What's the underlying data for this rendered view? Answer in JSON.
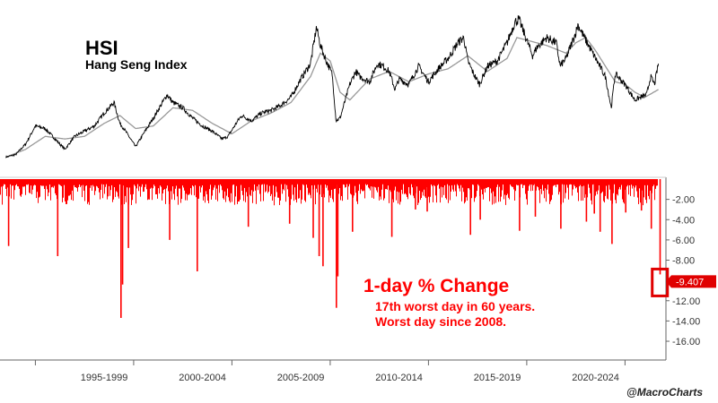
{
  "header": {
    "ticker": "HSI",
    "name": "Hang Seng Index"
  },
  "annotation": {
    "headline": "1-day % Change",
    "line1": "17th worst day in 60 years.",
    "line2": "Worst day since 2008."
  },
  "credit": "@MacroCharts",
  "colors": {
    "price": "#000000",
    "moving_average": "#999999",
    "bars": "#ff0000",
    "annotation": "#ff0000",
    "badge": "#e00000"
  },
  "chart_data": [
    {
      "type": "line",
      "panel": "top",
      "series": [
        {
          "name": "",
          "role": "price",
          "x": [
            1992.0,
            1992.5,
            1993.0,
            1993.5,
            1994.0,
            1994.5,
            1995.0,
            1995.5,
            1996.0,
            1996.5,
            1997.0,
            1997.5,
            1997.8,
            1998.0,
            1998.6,
            1999.0,
            1999.5,
            2000.2,
            2000.5,
            2001.0,
            2001.5,
            2002.0,
            2002.5,
            2003.0,
            2003.3,
            2003.8,
            2004.0,
            2004.5,
            2005.0,
            2005.5,
            2006.0,
            2006.5,
            2007.0,
            2007.5,
            2007.8,
            2008.0,
            2008.3,
            2008.6,
            2008.8,
            2009.0,
            2009.5,
            2009.8,
            2010.0,
            2010.5,
            2010.9,
            2011.2,
            2011.5,
            2011.8,
            2012.0,
            2012.5,
            2013.0,
            2013.5,
            2014.0,
            2014.5,
            2015.0,
            2015.3,
            2015.5,
            2015.8,
            2016.1,
            2016.5,
            2017.0,
            2017.5,
            2017.9,
            2018.1,
            2018.5,
            2018.8,
            2019.0,
            2019.5,
            2020.0,
            2020.2,
            2020.5,
            2021.0,
            2021.1,
            2021.5,
            2022.0,
            2022.5,
            2022.8,
            2023.0,
            2023.5,
            2024.0,
            2024.3,
            2024.6,
            2024.8,
            2025.0,
            2025.2
          ],
          "y": [
            5500,
            6000,
            8000,
            11500,
            11000,
            9000,
            7000,
            9500,
            10500,
            11500,
            14000,
            16000,
            12000,
            11000,
            7500,
            10000,
            13000,
            17500,
            16000,
            15000,
            13000,
            11500,
            10500,
            9000,
            9500,
            12500,
            13500,
            12500,
            14000,
            14500,
            15500,
            17000,
            20500,
            23500,
            30500,
            27000,
            24000,
            21500,
            12500,
            13000,
            19500,
            22000,
            21000,
            20000,
            23500,
            23000,
            22000,
            18500,
            20500,
            19500,
            23000,
            20000,
            22500,
            24500,
            27500,
            28500,
            24000,
            21500,
            19500,
            23000,
            24000,
            27500,
            31500,
            32000,
            28000,
            25000,
            26500,
            28500,
            27500,
            23000,
            24500,
            29500,
            31000,
            28000,
            24500,
            21000,
            15000,
            21500,
            19500,
            16500,
            17000,
            17500,
            21000,
            19500,
            23500
          ]
        },
        {
          "name": "",
          "role": "moving_average",
          "x": [
            1992.0,
            1993.0,
            1994.0,
            1995.0,
            1996.0,
            1997.0,
            1997.8,
            1998.6,
            1999.5,
            2000.5,
            2001.5,
            2002.5,
            2003.5,
            2004.5,
            2005.5,
            2006.5,
            2007.5,
            2008.0,
            2008.5,
            2009.0,
            2009.5,
            2010.5,
            2011.5,
            2012.5,
            2013.5,
            2014.5,
            2015.5,
            2016.5,
            2017.5,
            2018.0,
            2018.5,
            2019.5,
            2020.5,
            2021.0,
            2021.5,
            2022.0,
            2022.5,
            2023.0,
            2023.5,
            2024.0,
            2024.5,
            2025.2
          ],
          "y": [
            5500,
            7000,
            9500,
            9000,
            9500,
            12000,
            13500,
            11000,
            11500,
            15000,
            14500,
            12000,
            10000,
            12500,
            14000,
            16000,
            21000,
            25500,
            24000,
            18000,
            16500,
            20500,
            22000,
            20000,
            21500,
            22500,
            25000,
            22000,
            24500,
            28500,
            28000,
            27000,
            25500,
            27500,
            28500,
            26000,
            23000,
            20000,
            19500,
            18000,
            17000,
            18500
          ]
        }
      ],
      "ylim": [
        3000,
        34000
      ],
      "grid": false
    },
    {
      "type": "bar",
      "panel": "bottom",
      "title": "1-day % Change",
      "ylim": [
        -17.5,
        0
      ],
      "yticks": [
        "-2.00",
        "-4.00",
        "-6.00",
        "-8.00",
        "-10.00",
        "-12.00",
        "-14.00",
        "-16.00"
      ],
      "ytick_values": [
        -2,
        -4,
        -6,
        -8,
        -10,
        -12,
        -14,
        -16
      ],
      "last_value": -9.407,
      "last_value_label": "-9.407",
      "notable_drops": [
        {
          "x": 1992.1,
          "y": -6.6
        },
        {
          "x": 1994.6,
          "y": -7.6
        },
        {
          "x": 1997.82,
          "y": -13.7
        },
        {
          "x": 1997.9,
          "y": -10.4
        },
        {
          "x": 1998.2,
          "y": -6.8
        },
        {
          "x": 2000.3,
          "y": -6.0
        },
        {
          "x": 2001.7,
          "y": -9.1
        },
        {
          "x": 2004.3,
          "y": -4.7
        },
        {
          "x": 2006.4,
          "y": -4.4
        },
        {
          "x": 2007.6,
          "y": -5.8
        },
        {
          "x": 2007.9,
          "y": -7.6
        },
        {
          "x": 2008.1,
          "y": -8.6
        },
        {
          "x": 2008.78,
          "y": -12.7
        },
        {
          "x": 2008.85,
          "y": -9.6
        },
        {
          "x": 2009.6,
          "y": -5.2
        },
        {
          "x": 2011.6,
          "y": -5.7
        },
        {
          "x": 2012.8,
          "y": -3.0
        },
        {
          "x": 2013.4,
          "y": -3.2
        },
        {
          "x": 2015.6,
          "y": -5.5
        },
        {
          "x": 2016.1,
          "y": -4.0
        },
        {
          "x": 2018.1,
          "y": -5.1
        },
        {
          "x": 2018.9,
          "y": -3.7
        },
        {
          "x": 2020.2,
          "y": -4.9
        },
        {
          "x": 2021.5,
          "y": -4.2
        },
        {
          "x": 2021.9,
          "y": -3.4
        },
        {
          "x": 2022.2,
          "y": -5.2
        },
        {
          "x": 2022.8,
          "y": -6.4
        },
        {
          "x": 2023.5,
          "y": -3.3
        },
        {
          "x": 2024.3,
          "y": -3.1
        },
        {
          "x": 2024.8,
          "y": -4.9
        },
        {
          "x": 2025.25,
          "y": -9.407
        }
      ],
      "typical_drop_range": [
        -0.5,
        -2.6
      ],
      "grid": false
    }
  ],
  "x_axis": {
    "labels": [
      "1995-1999",
      "2000-2004",
      "2005-2009",
      "2010-2014",
      "2015-2019",
      "2020-2024"
    ],
    "label_centers": [
      1997.0,
      2002.0,
      2007.0,
      2012.0,
      2017.0,
      2022.0
    ],
    "boundaries": [
      1993.5,
      1998.5,
      2003.5,
      2008.5,
      2013.5,
      2018.5,
      2023.5
    ],
    "range": [
      1991.7,
      2025.4
    ]
  }
}
